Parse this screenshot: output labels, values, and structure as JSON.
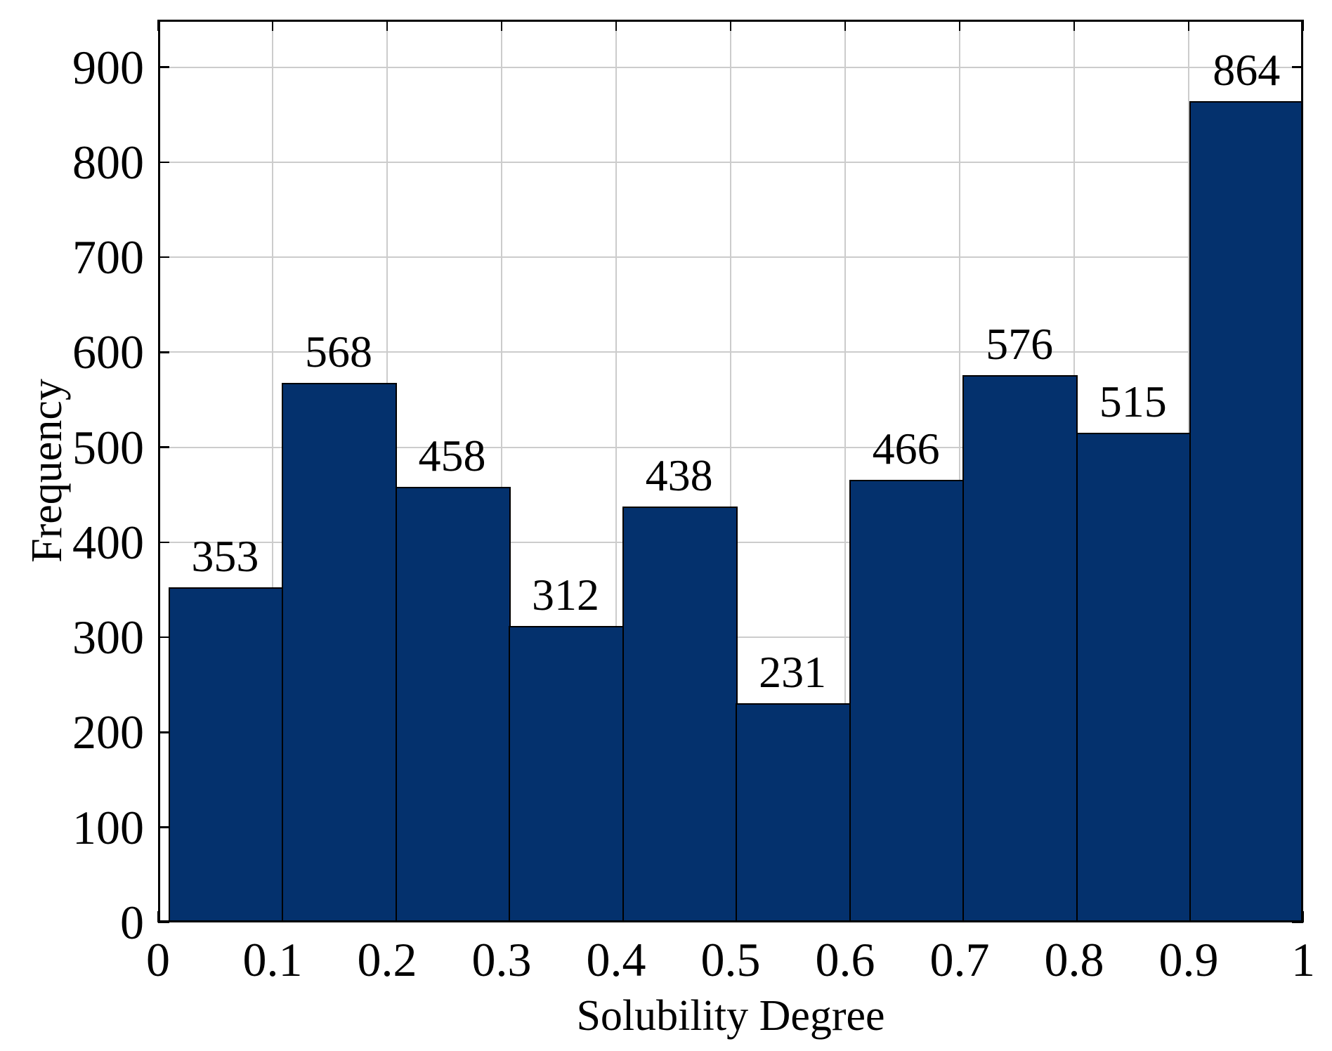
{
  "chart_data": {
    "type": "bar",
    "subtype": "histogram",
    "title": "",
    "xlabel": "Solubility Degree",
    "ylabel": "Frequency",
    "values": [
      353,
      568,
      458,
      312,
      438,
      231,
      466,
      576,
      515,
      864
    ],
    "bar_value_labels": [
      "353",
      "568",
      "458",
      "312",
      "438",
      "231",
      "466",
      "576",
      "515",
      "864"
    ],
    "bin_edges": [
      0.009,
      0.1081,
      0.2072,
      0.3063,
      0.4054,
      0.5045,
      0.6036,
      0.7027,
      0.8018,
      0.9009,
      1.0
    ],
    "xlim": [
      0,
      1
    ],
    "ylim": [
      0,
      950
    ],
    "xticks": [
      0,
      0.1,
      0.2,
      0.3,
      0.4,
      0.5,
      0.6,
      0.7,
      0.8,
      0.9,
      1
    ],
    "xtick_labels": [
      "0",
      "0.1",
      "0.2",
      "0.3",
      "0.4",
      "0.5",
      "0.6",
      "0.7",
      "0.8",
      "0.9",
      "1"
    ],
    "yticks": [
      0,
      100,
      200,
      300,
      400,
      500,
      600,
      700,
      800,
      900
    ],
    "ytick_labels": [
      "0",
      "100",
      "200",
      "300",
      "400",
      "500",
      "600",
      "700",
      "800",
      "900"
    ],
    "grid": true,
    "legend_position": "none",
    "colors": {
      "bar_fill": "#04316d",
      "bar_edge": "#000000",
      "grid": "#cccccc",
      "axis": "#000000",
      "text": "#000000",
      "background": "#ffffff"
    }
  }
}
